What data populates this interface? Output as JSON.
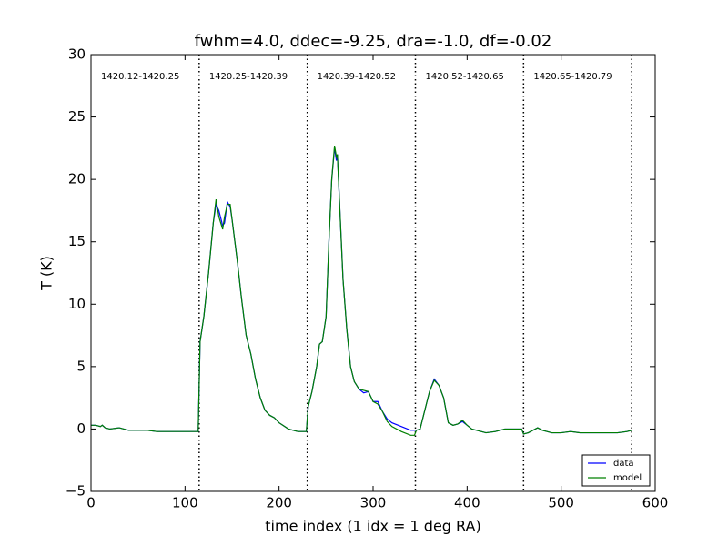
{
  "chart_data": {
    "type": "line",
    "title": "fwhm=4.0, ddec=-9.25, dra=-1.0, df=-0.02",
    "x_label": "time index (1 idx = 1 deg RA)",
    "y_label": "T (K)",
    "x": [
      0,
      5,
      10,
      12,
      15,
      20,
      30,
      40,
      50,
      60,
      70,
      80,
      90,
      100,
      110,
      114,
      116,
      120,
      125,
      130,
      133,
      136,
      140,
      142,
      145,
      148,
      150,
      153,
      156,
      160,
      165,
      170,
      175,
      180,
      185,
      190,
      195,
      200,
      210,
      220,
      229,
      231,
      235,
      240,
      243,
      246,
      250,
      253,
      256,
      259,
      261,
      262,
      265,
      268,
      272,
      276,
      280,
      285,
      290,
      295,
      300,
      305,
      310,
      315,
      320,
      330,
      340,
      344,
      346,
      350,
      355,
      360,
      365,
      370,
      375,
      380,
      385,
      390,
      395,
      400,
      405,
      410,
      420,
      430,
      440,
      450,
      458,
      460,
      465,
      470,
      475,
      480,
      490,
      500,
      510,
      520,
      540,
      560,
      570,
      575
    ],
    "series": [
      {
        "name": "data",
        "color": "#0000ff",
        "values": [
          0.3,
          0.3,
          0.2,
          0.3,
          0.1,
          0.0,
          0.1,
          -0.1,
          -0.1,
          -0.1,
          -0.2,
          -0.2,
          -0.2,
          -0.2,
          -0.2,
          -0.2,
          7.0,
          9.0,
          12.5,
          16.5,
          18.0,
          17.5,
          16.3,
          16.5,
          18.2,
          17.8,
          16.8,
          15.0,
          13.2,
          10.5,
          7.5,
          6.0,
          4.0,
          2.5,
          1.5,
          1.1,
          0.9,
          0.5,
          0.0,
          -0.2,
          -0.2,
          1.8,
          3.0,
          5.0,
          6.8,
          7.0,
          9.0,
          15.0,
          20.0,
          22.5,
          21.5,
          22.0,
          17.0,
          12.0,
          8.0,
          5.0,
          3.8,
          3.2,
          2.9,
          3.0,
          2.2,
          2.2,
          1.4,
          0.8,
          0.5,
          0.2,
          -0.1,
          -0.1,
          -0.1,
          0.0,
          1.5,
          3.0,
          4.0,
          3.5,
          2.5,
          0.5,
          0.3,
          0.4,
          0.6,
          0.3,
          0.0,
          -0.1,
          -0.3,
          -0.2,
          0.0,
          0.0,
          0.0,
          -0.4,
          -0.3,
          -0.1,
          0.1,
          -0.1,
          -0.3,
          -0.3,
          -0.2,
          -0.3,
          -0.3,
          -0.3,
          -0.2,
          -0.1
        ]
      },
      {
        "name": "model",
        "color": "#008000",
        "values": [
          0.3,
          0.3,
          0.2,
          0.3,
          0.1,
          0.0,
          0.1,
          -0.1,
          -0.1,
          -0.1,
          -0.2,
          -0.2,
          -0.2,
          -0.2,
          -0.2,
          -0.2,
          7.0,
          9.0,
          12.5,
          16.5,
          18.4,
          17.0,
          16.0,
          17.0,
          18.0,
          18.0,
          16.8,
          15.0,
          13.2,
          10.5,
          7.5,
          6.0,
          4.0,
          2.5,
          1.5,
          1.1,
          0.9,
          0.5,
          0.0,
          -0.2,
          -0.2,
          1.8,
          3.0,
          5.0,
          6.8,
          7.0,
          9.0,
          15.0,
          20.0,
          22.7,
          21.8,
          22.0,
          17.0,
          12.0,
          8.0,
          5.0,
          3.8,
          3.2,
          3.1,
          3.0,
          2.2,
          2.0,
          1.4,
          0.6,
          0.2,
          -0.2,
          -0.5,
          -0.5,
          -0.1,
          0.0,
          1.5,
          3.0,
          3.9,
          3.5,
          2.5,
          0.5,
          0.3,
          0.4,
          0.7,
          0.3,
          0.0,
          -0.1,
          -0.3,
          -0.2,
          0.0,
          0.0,
          0.0,
          -0.4,
          -0.3,
          -0.1,
          0.1,
          -0.1,
          -0.3,
          -0.3,
          -0.2,
          -0.3,
          -0.3,
          -0.3,
          -0.2,
          -0.1
        ]
      }
    ],
    "vlines": [
      115,
      230,
      345,
      460,
      575
    ],
    "segment_labels": [
      "1420.12-1420.25",
      "1420.25-1420.39",
      "1420.39-1420.52",
      "1420.52-1420.65",
      "1420.65-1420.79"
    ],
    "xlim": [
      0,
      600
    ],
    "xticks": [
      0,
      100,
      200,
      300,
      400,
      500,
      600
    ],
    "ylim": [
      -5,
      30
    ],
    "yticks": [
      {
        "value": -5,
        "label": "−5"
      },
      0,
      5,
      10,
      15,
      20,
      25,
      30
    ],
    "legend": "lower right",
    "grid": false
  }
}
